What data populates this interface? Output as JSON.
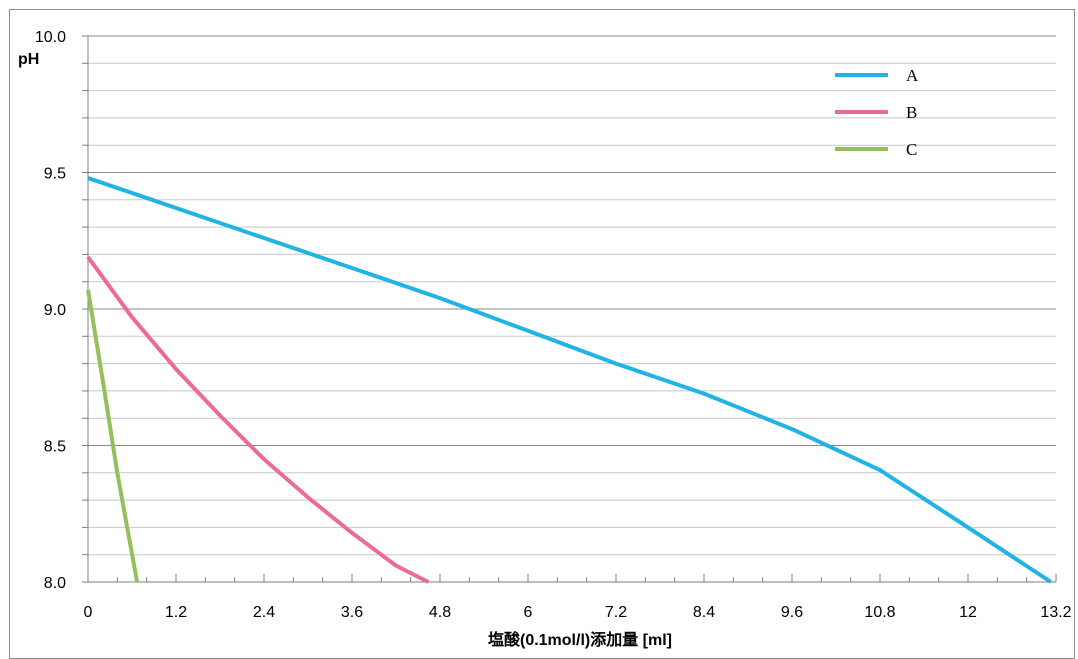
{
  "chart_data": {
    "type": "line",
    "title": "",
    "xlabel": "塩酸(0.1mol/l)添加量 [ml]",
    "ylabel": "pH",
    "xlim": [
      0,
      13.2
    ],
    "ylim": [
      8.0,
      10.0
    ],
    "x_ticks": [
      "0",
      "1.2",
      "2.4",
      "3.6",
      "4.8",
      "6",
      "7.2",
      "8.4",
      "9.6",
      "10.8",
      "12",
      "13.2"
    ],
    "y_ticks": [
      "8.0",
      "8.5",
      "9.0",
      "9.5",
      "10.0"
    ],
    "grid": true,
    "legend_position": "top-right",
    "series": [
      {
        "name": "A",
        "color": "#1fb3e6",
        "points": [
          [
            0,
            9.48
          ],
          [
            1.2,
            9.37
          ],
          [
            2.4,
            9.26
          ],
          [
            3.6,
            9.15
          ],
          [
            4.8,
            9.04
          ],
          [
            6,
            8.92
          ],
          [
            7.2,
            8.8
          ],
          [
            8.4,
            8.69
          ],
          [
            9.6,
            8.56
          ],
          [
            10.8,
            8.41
          ],
          [
            12,
            8.2
          ],
          [
            13.13,
            8.0
          ]
        ]
      },
      {
        "name": "B",
        "color": "#ee6a96",
        "points": [
          [
            0,
            9.19
          ],
          [
            0.6,
            8.97
          ],
          [
            1.2,
            8.78
          ],
          [
            1.8,
            8.61
          ],
          [
            2.4,
            8.45
          ],
          [
            3.0,
            8.31
          ],
          [
            3.6,
            8.18
          ],
          [
            4.2,
            8.06
          ],
          [
            4.64,
            8.0
          ]
        ]
      },
      {
        "name": "C",
        "color": "#93c05a",
        "points": [
          [
            0,
            9.07
          ],
          [
            0.2,
            8.74
          ],
          [
            0.4,
            8.4
          ],
          [
            0.67,
            8.0
          ]
        ]
      }
    ]
  }
}
